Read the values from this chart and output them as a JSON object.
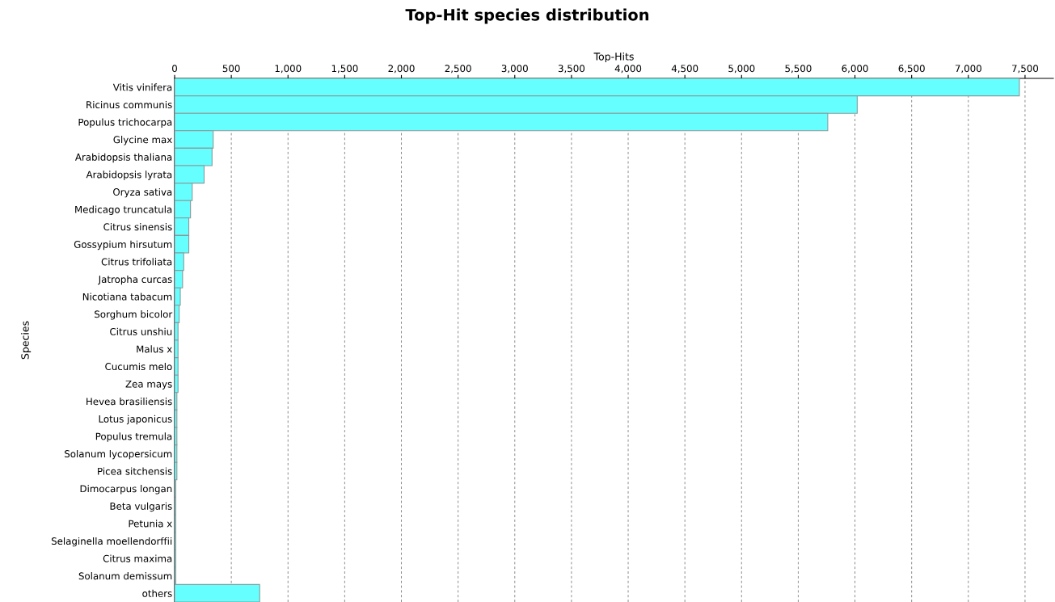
{
  "chart_data": {
    "type": "bar",
    "orientation": "horizontal",
    "title": "Top-Hit species distribution",
    "xlabel": "Top-Hits",
    "ylabel": "Species",
    "categories": [
      "Vitis vinifera",
      "Ricinus communis",
      "Populus trichocarpa",
      "Glycine max",
      "Arabidopsis thaliana",
      "Arabidopsis lyrata",
      "Oryza sativa",
      "Medicago truncatula",
      "Citrus sinensis",
      "Gossypium hirsutum",
      "Citrus trifoliata",
      "Jatropha curcas",
      "Nicotiana tabacum",
      "Sorghum bicolor",
      "Citrus unshiu",
      "Malus x",
      "Cucumis melo",
      "Zea mays",
      "Hevea brasiliensis",
      "Lotus japonicus",
      "Populus tremula",
      "Solanum lycopersicum",
      "Picea sitchensis",
      "Dimocarpus longan",
      "Beta vulgaris",
      "Petunia x",
      "Selaginella moellendorffii",
      "Citrus maxima",
      "Solanum demissum",
      "others"
    ],
    "values": [
      7450,
      6020,
      5760,
      340,
      330,
      260,
      155,
      140,
      125,
      125,
      80,
      70,
      50,
      40,
      30,
      30,
      30,
      30,
      20,
      20,
      20,
      20,
      20,
      10,
      10,
      10,
      10,
      10,
      10,
      750
    ],
    "color": "#66ffff",
    "xlim": [
      0,
      7750
    ],
    "xticks": [
      0,
      {
        "value": 500,
        "label": "500"
      },
      {
        "value": 1000,
        "label": "1,000"
      },
      {
        "value": 1500,
        "label": "1,500"
      },
      {
        "value": 2000,
        "label": "2,000"
      },
      {
        "value": 2500,
        "label": "2,500"
      },
      {
        "value": 3000,
        "label": "3,000"
      },
      {
        "value": 3500,
        "label": "3,500"
      },
      {
        "value": 4000,
        "label": "4,000"
      },
      {
        "value": 4500,
        "label": "4,500"
      },
      {
        "value": 5000,
        "label": "5,000"
      },
      {
        "value": 5500,
        "label": "5,500"
      },
      {
        "value": 6000,
        "label": "6,000"
      },
      {
        "value": 6500,
        "label": "6,500"
      },
      {
        "value": 7000,
        "label": "7,000"
      },
      {
        "value": 7500,
        "label": "7,500"
      }
    ],
    "grid": "x"
  }
}
